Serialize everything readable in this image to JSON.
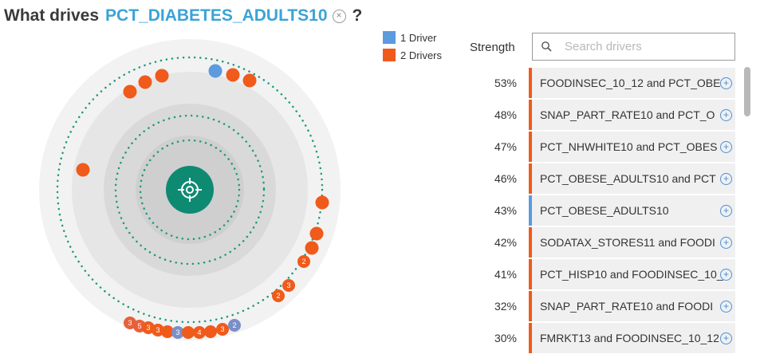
{
  "header": {
    "prefix": "What drives",
    "target": "PCT_DIABETES_ADULTS10",
    "clear_glyph": "×",
    "help_glyph": "?"
  },
  "legend": [
    {
      "label": "1 Driver",
      "color": "#5b9bde"
    },
    {
      "label": "2 Drivers",
      "color": "#f05a1a"
    }
  ],
  "colors": {
    "accent_blue": "#5b9bde",
    "accent_orange": "#f05a1a",
    "target_green": "#0f8a72",
    "dot_line": "#1a9a7c"
  },
  "drivers_panel": {
    "strength_label": "Strength",
    "search_placeholder": "Search drivers",
    "items": [
      {
        "pct": "53%",
        "label": "FOODINSEC_10_12 and PCT_OBE",
        "color": "#f05a1a"
      },
      {
        "pct": "48%",
        "label": "SNAP_PART_RATE10 and PCT_O",
        "color": "#f05a1a"
      },
      {
        "pct": "47%",
        "label": "PCT_NHWHITE10 and PCT_OBES",
        "color": "#f05a1a"
      },
      {
        "pct": "46%",
        "label": "PCT_OBESE_ADULTS10 and PCT",
        "color": "#f05a1a"
      },
      {
        "pct": "43%",
        "label": "PCT_OBESE_ADULTS10",
        "color": "#5b9bde"
      },
      {
        "pct": "42%",
        "label": "SODATAX_STORES11 and FOODI",
        "color": "#f05a1a"
      },
      {
        "pct": "41%",
        "label": "PCT_HISP10 and FOODINSEC_10_",
        "color": "#f05a1a"
      },
      {
        "pct": "32%",
        "label": "SNAP_PART_RATE10 and FOODI",
        "color": "#f05a1a"
      },
      {
        "pct": "30%",
        "label": "FMRKT13 and FOODINSEC_10_12",
        "color": "#f05a1a"
      }
    ]
  },
  "bubble_labels": [
    "2",
    "3",
    "2",
    "3",
    "5",
    "3",
    "3",
    "3",
    "4",
    "3",
    "2"
  ]
}
